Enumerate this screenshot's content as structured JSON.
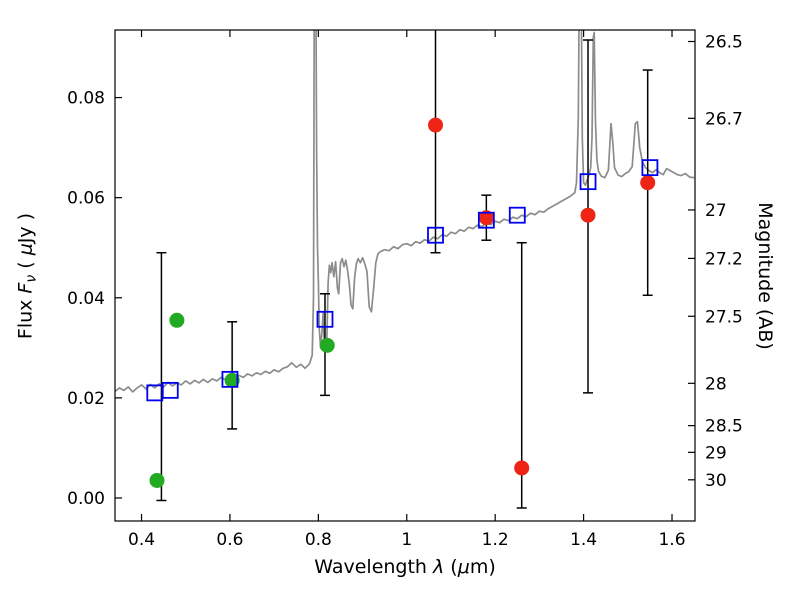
{
  "figure": {
    "xlabel_parts": [
      "Wavelength  ",
      "λ",
      "  (",
      "μ",
      "m)"
    ],
    "ylabel_left_parts": [
      "Flux  ",
      "F",
      "ν",
      "  ( ",
      "μ",
      "Jy )"
    ],
    "ylabel_right": "Magnitude (AB)"
  },
  "chart_data": {
    "type": "line",
    "title": "",
    "xlabel": "Wavelength λ (μm)",
    "ylabel": "Flux Fν ( μJy )",
    "ylabel_right": "Magnitude (AB)",
    "xlim": [
      0.34,
      1.652
    ],
    "ylim": [
      -0.0046,
      0.0935
    ],
    "grid": false,
    "legend": false,
    "mag_zeropoint": 23.9,
    "x_ticks": [
      {
        "v": 0.4,
        "label": "0.4"
      },
      {
        "v": 0.6,
        "label": "0.6"
      },
      {
        "v": 0.8,
        "label": "0.8"
      },
      {
        "v": 1.0,
        "label": "1"
      },
      {
        "v": 1.2,
        "label": "1.2"
      },
      {
        "v": 1.4,
        "label": "1.4"
      },
      {
        "v": 1.6,
        "label": "1.6"
      }
    ],
    "y_ticks_left": [
      {
        "v": 0.0,
        "label": "0.00"
      },
      {
        "v": 0.02,
        "label": "0.02"
      },
      {
        "v": 0.04,
        "label": "0.04"
      },
      {
        "v": 0.06,
        "label": "0.06"
      },
      {
        "v": 0.08,
        "label": "0.08"
      }
    ],
    "y_ticks_right": [
      {
        "v": 26.5,
        "label": "26.5"
      },
      {
        "v": 26.7,
        "label": "26.7"
      },
      {
        "v": 27,
        "label": "27"
      },
      {
        "v": 27.2,
        "label": "27.2"
      },
      {
        "v": 27.5,
        "label": "27.5"
      },
      {
        "v": 28,
        "label": "28"
      },
      {
        "v": 28.5,
        "label": "28.5"
      },
      {
        "v": 29,
        "label": "29"
      },
      {
        "v": 30,
        "label": "30"
      }
    ],
    "series": {
      "spectrum": {
        "name": "model spectrum",
        "color": "#8c8c8c",
        "points": [
          [
            0.34,
            0.0213
          ],
          [
            0.35,
            0.022
          ],
          [
            0.36,
            0.0215
          ],
          [
            0.37,
            0.0222
          ],
          [
            0.38,
            0.0212
          ],
          [
            0.39,
            0.022
          ],
          [
            0.4,
            0.0226
          ],
          [
            0.41,
            0.0218
          ],
          [
            0.42,
            0.0227
          ],
          [
            0.43,
            0.022
          ],
          [
            0.44,
            0.0228
          ],
          [
            0.45,
            0.0222
          ],
          [
            0.46,
            0.0231
          ],
          [
            0.47,
            0.0224
          ],
          [
            0.48,
            0.023
          ],
          [
            0.49,
            0.0226
          ],
          [
            0.5,
            0.0234
          ],
          [
            0.51,
            0.0228
          ],
          [
            0.52,
            0.0235
          ],
          [
            0.53,
            0.023
          ],
          [
            0.54,
            0.0237
          ],
          [
            0.55,
            0.0231
          ],
          [
            0.56,
            0.0238
          ],
          [
            0.57,
            0.0234
          ],
          [
            0.58,
            0.0241
          ],
          [
            0.59,
            0.0236
          ],
          [
            0.6,
            0.0243
          ],
          [
            0.61,
            0.0239
          ],
          [
            0.62,
            0.0245
          ],
          [
            0.63,
            0.0241
          ],
          [
            0.64,
            0.0248
          ],
          [
            0.65,
            0.0244
          ],
          [
            0.66,
            0.025
          ],
          [
            0.67,
            0.0247
          ],
          [
            0.68,
            0.0253
          ],
          [
            0.69,
            0.0249
          ],
          [
            0.7,
            0.0256
          ],
          [
            0.71,
            0.0252
          ],
          [
            0.72,
            0.0259
          ],
          [
            0.73,
            0.0262
          ],
          [
            0.74,
            0.027
          ],
          [
            0.75,
            0.0261
          ],
          [
            0.76,
            0.0267
          ],
          [
            0.77,
            0.0259
          ],
          [
            0.78,
            0.0268
          ],
          [
            0.786,
            0.0285
          ],
          [
            0.789,
            0.04
          ],
          [
            0.791,
            0.11
          ],
          [
            0.794,
            0.11
          ],
          [
            0.796,
            0.07
          ],
          [
            0.798,
            0.05
          ],
          [
            0.8,
            0.043
          ],
          [
            0.802,
            0.034
          ],
          [
            0.805,
            0.03
          ],
          [
            0.808,
            0.033
          ],
          [
            0.811,
            0.037
          ],
          [
            0.813,
            0.0315
          ],
          [
            0.816,
            0.03
          ],
          [
            0.819,
            0.031
          ],
          [
            0.822,
            0.043
          ],
          [
            0.825,
            0.0465
          ],
          [
            0.828,
            0.045
          ],
          [
            0.831,
            0.047
          ],
          [
            0.835,
            0.0442
          ],
          [
            0.839,
            0.0472
          ],
          [
            0.843,
            0.042
          ],
          [
            0.846,
            0.0408
          ],
          [
            0.85,
            0.047
          ],
          [
            0.854,
            0.0478
          ],
          [
            0.858,
            0.0462
          ],
          [
            0.862,
            0.0475
          ],
          [
            0.866,
            0.0455
          ],
          [
            0.87,
            0.0428
          ],
          [
            0.874,
            0.0385
          ],
          [
            0.878,
            0.0378
          ],
          [
            0.882,
            0.044
          ],
          [
            0.886,
            0.0468
          ],
          [
            0.89,
            0.0478
          ],
          [
            0.895,
            0.047
          ],
          [
            0.9,
            0.048
          ],
          [
            0.905,
            0.0468
          ],
          [
            0.91,
            0.0452
          ],
          [
            0.915,
            0.0382
          ],
          [
            0.92,
            0.0372
          ],
          [
            0.925,
            0.0418
          ],
          [
            0.93,
            0.047
          ],
          [
            0.935,
            0.0488
          ],
          [
            0.94,
            0.0492
          ],
          [
            0.95,
            0.0496
          ],
          [
            0.96,
            0.0494
          ],
          [
            0.97,
            0.0502
          ],
          [
            0.98,
            0.0498
          ],
          [
            0.99,
            0.0506
          ],
          [
            1.0,
            0.0508
          ],
          [
            1.01,
            0.0504
          ],
          [
            1.02,
            0.0512
          ],
          [
            1.03,
            0.0509
          ],
          [
            1.04,
            0.0516
          ],
          [
            1.05,
            0.0513
          ],
          [
            1.06,
            0.0521
          ],
          [
            1.07,
            0.0518
          ],
          [
            1.08,
            0.0526
          ],
          [
            1.09,
            0.0523
          ],
          [
            1.1,
            0.0531
          ],
          [
            1.11,
            0.0528
          ],
          [
            1.12,
            0.0536
          ],
          [
            1.13,
            0.0533
          ],
          [
            1.14,
            0.0541
          ],
          [
            1.15,
            0.0538
          ],
          [
            1.16,
            0.0545
          ],
          [
            1.17,
            0.0542
          ],
          [
            1.18,
            0.0549
          ],
          [
            1.19,
            0.0546
          ],
          [
            1.2,
            0.0553
          ],
          [
            1.21,
            0.055
          ],
          [
            1.22,
            0.0557
          ],
          [
            1.23,
            0.0554
          ],
          [
            1.24,
            0.0561
          ],
          [
            1.25,
            0.0558
          ],
          [
            1.26,
            0.0565
          ],
          [
            1.27,
            0.0562
          ],
          [
            1.28,
            0.0569
          ],
          [
            1.29,
            0.0566
          ],
          [
            1.3,
            0.0573
          ],
          [
            1.31,
            0.0571
          ],
          [
            1.32,
            0.0578
          ],
          [
            1.33,
            0.0583
          ],
          [
            1.34,
            0.0588
          ],
          [
            1.35,
            0.0593
          ],
          [
            1.36,
            0.0598
          ],
          [
            1.37,
            0.0603
          ],
          [
            1.38,
            0.061
          ],
          [
            1.384,
            0.063
          ],
          [
            1.388,
            0.076
          ],
          [
            1.391,
            0.11
          ],
          [
            1.394,
            0.11
          ],
          [
            1.397,
            0.072
          ],
          [
            1.4,
            0.063
          ],
          [
            1.404,
            0.0625
          ],
          [
            1.408,
            0.0635
          ],
          [
            1.412,
            0.0645
          ],
          [
            1.416,
            0.066
          ],
          [
            1.419,
            0.072
          ],
          [
            1.422,
            0.092
          ],
          [
            1.424,
            0.093
          ],
          [
            1.427,
            0.075
          ],
          [
            1.43,
            0.0675
          ],
          [
            1.434,
            0.0652
          ],
          [
            1.44,
            0.0643
          ],
          [
            1.448,
            0.064
          ],
          [
            1.456,
            0.0655
          ],
          [
            1.462,
            0.0748
          ],
          [
            1.466,
            0.071
          ],
          [
            1.47,
            0.066
          ],
          [
            1.478,
            0.0645
          ],
          [
            1.486,
            0.0642
          ],
          [
            1.494,
            0.0648
          ],
          [
            1.502,
            0.0652
          ],
          [
            1.51,
            0.0662
          ],
          [
            1.517,
            0.0748
          ],
          [
            1.522,
            0.0752
          ],
          [
            1.527,
            0.07
          ],
          [
            1.533,
            0.0672
          ],
          [
            1.54,
            0.066
          ],
          [
            1.548,
            0.0654
          ],
          [
            1.556,
            0.065
          ],
          [
            1.564,
            0.0656
          ],
          [
            1.572,
            0.065
          ],
          [
            1.58,
            0.0646
          ],
          [
            1.588,
            0.0658
          ],
          [
            1.596,
            0.0654
          ],
          [
            1.604,
            0.065
          ],
          [
            1.612,
            0.0646
          ],
          [
            1.62,
            0.0644
          ],
          [
            1.63,
            0.0648
          ],
          [
            1.64,
            0.0641
          ],
          [
            1.65,
            0.064
          ]
        ]
      },
      "squares": {
        "name": "model photometry (open squares)",
        "color": "#0000f0",
        "points": [
          [
            0.43,
            0.021
          ],
          [
            0.465,
            0.0215
          ],
          [
            0.6,
            0.0237
          ],
          [
            0.815,
            0.0357
          ],
          [
            1.065,
            0.0525
          ],
          [
            1.18,
            0.0555
          ],
          [
            1.25,
            0.0565
          ],
          [
            1.41,
            0.0632
          ],
          [
            1.55,
            0.066
          ]
        ]
      },
      "green_points": {
        "name": "observed photometry (green circles)",
        "color": "#22aa22",
        "points": [
          [
            0.435,
            0.0035
          ],
          [
            0.48,
            0.0355
          ],
          [
            0.605,
            0.0235
          ],
          [
            0.82,
            0.0305
          ]
        ]
      },
      "red_points": {
        "name": "observed photometry (red circles)",
        "color": "#ee2415",
        "points": [
          [
            1.065,
            0.0745
          ],
          [
            1.18,
            0.056
          ],
          [
            1.26,
            0.006
          ],
          [
            1.41,
            0.0565
          ],
          [
            1.545,
            0.063
          ]
        ]
      },
      "error_bars": [
        {
          "x": 0.445,
          "lo": -0.0005,
          "hi": 0.049
        },
        {
          "x": 0.605,
          "lo": 0.0138,
          "hi": 0.0352
        },
        {
          "x": 0.815,
          "lo": 0.0205,
          "hi": 0.0408
        },
        {
          "x": 1.065,
          "lo": 0.049,
          "hi": 0.098
        },
        {
          "x": 1.18,
          "lo": 0.0515,
          "hi": 0.0605
        },
        {
          "x": 1.26,
          "lo": -0.002,
          "hi": 0.051
        },
        {
          "x": 1.41,
          "lo": 0.021,
          "hi": 0.0915
        },
        {
          "x": 1.545,
          "lo": 0.0405,
          "hi": 0.0855
        }
      ]
    }
  }
}
